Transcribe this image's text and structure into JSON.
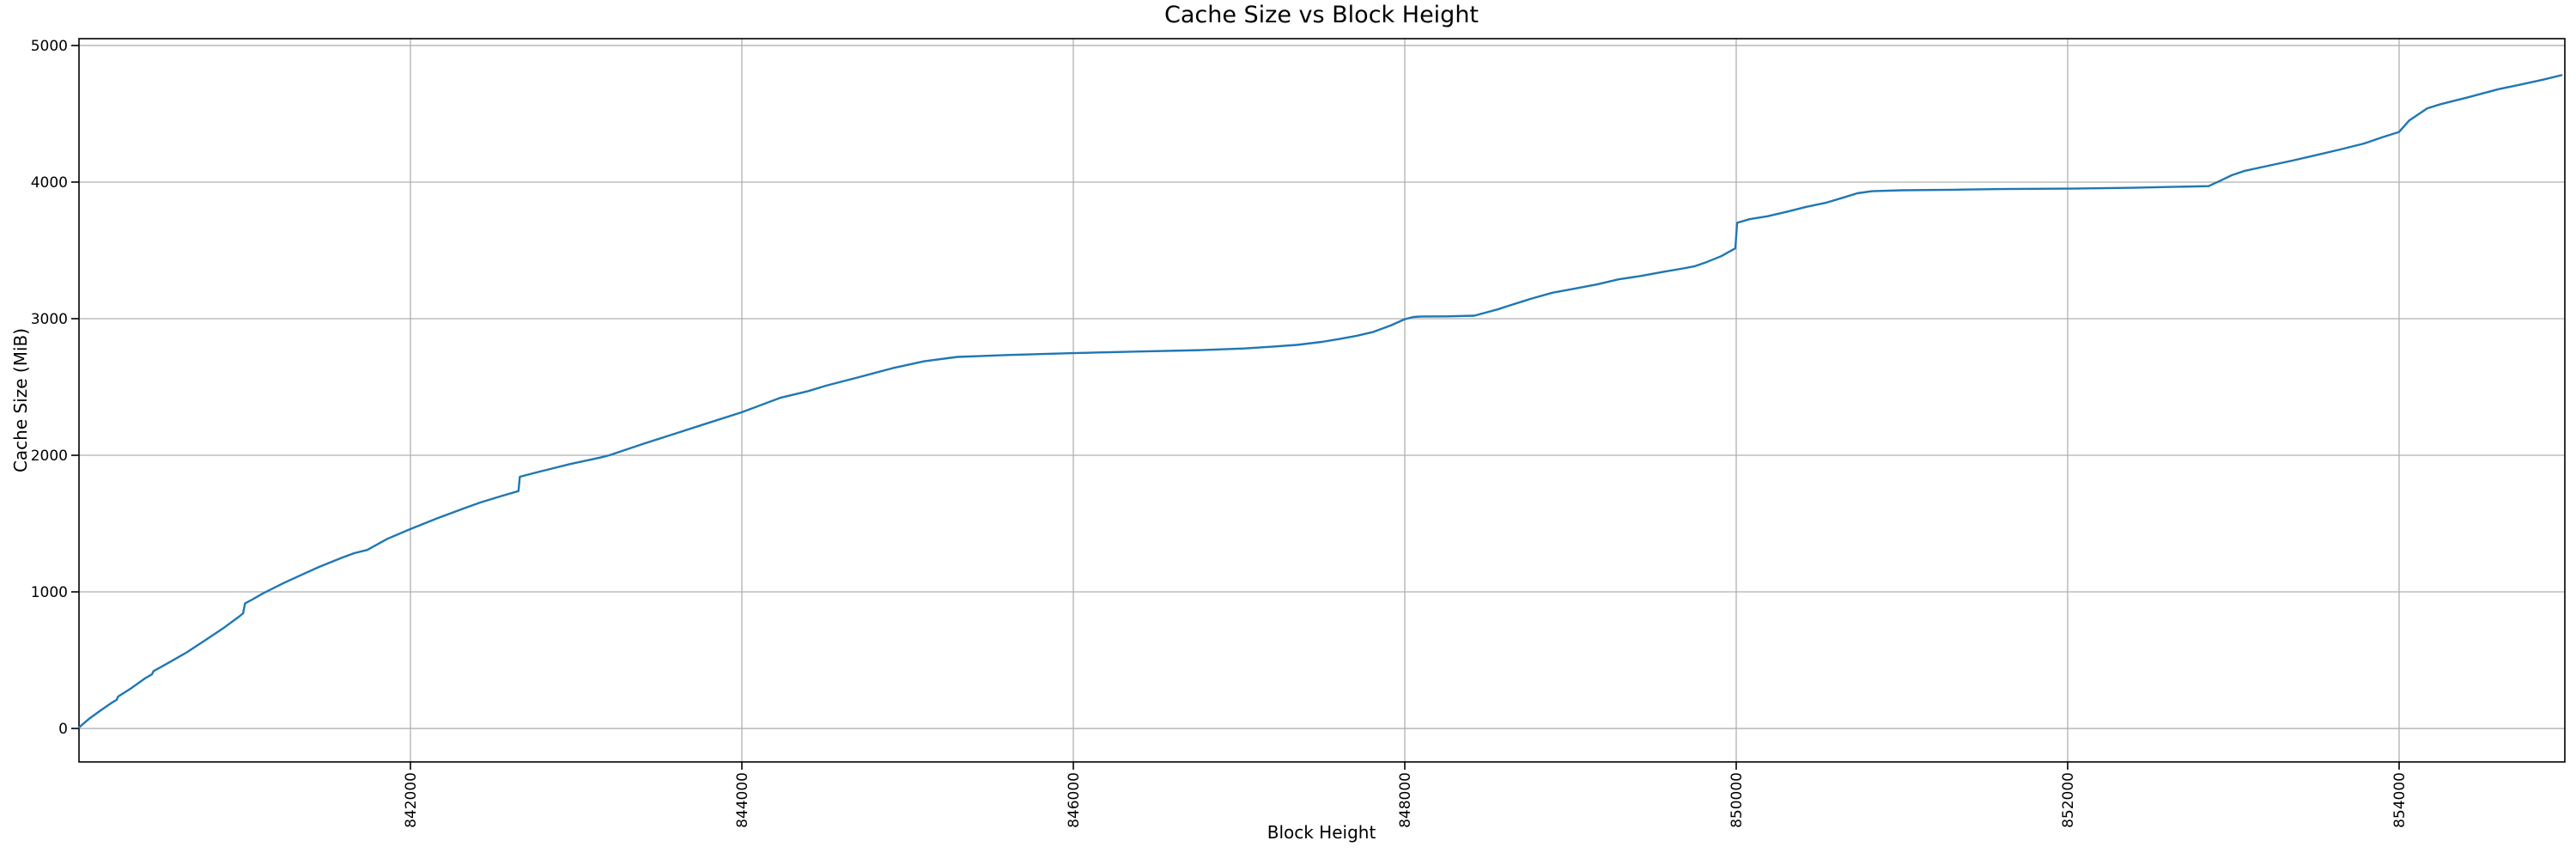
{
  "chart_data": {
    "type": "line",
    "title": "Cache Size vs Block Height",
    "xlabel": "Block Height",
    "ylabel": "Cache Size (MiB)",
    "x_ticks": [
      842000,
      844000,
      846000,
      848000,
      850000,
      852000,
      854000
    ],
    "y_ticks": [
      0,
      1000,
      2000,
      3000,
      4000,
      5000
    ],
    "xlim": [
      840000,
      855000
    ],
    "ylim": [
      -245,
      5050
    ],
    "grid": true,
    "legend_position": "none",
    "line_color": "#1f77b4",
    "grid_color": "#b0b0b0",
    "axis_color": "#000000",
    "background_color": "#ffffff",
    "points": [
      [
        840000,
        8
      ],
      [
        840060,
        70
      ],
      [
        840130,
        132
      ],
      [
        840200,
        190
      ],
      [
        840228,
        210
      ],
      [
        840235,
        233
      ],
      [
        840310,
        290
      ],
      [
        840400,
        368
      ],
      [
        840440,
        396
      ],
      [
        840450,
        420
      ],
      [
        840530,
        474
      ],
      [
        840650,
        557
      ],
      [
        840760,
        645
      ],
      [
        840875,
        738
      ],
      [
        840965,
        818
      ],
      [
        840990,
        843
      ],
      [
        841002,
        916
      ],
      [
        841050,
        947
      ],
      [
        841110,
        989
      ],
      [
        841230,
        1062
      ],
      [
        841330,
        1118
      ],
      [
        841450,
        1183
      ],
      [
        841590,
        1252
      ],
      [
        841660,
        1283
      ],
      [
        841740,
        1307
      ],
      [
        841860,
        1388
      ],
      [
        842000,
        1460
      ],
      [
        842160,
        1538
      ],
      [
        842320,
        1610
      ],
      [
        842421,
        1654
      ],
      [
        842550,
        1702
      ],
      [
        842652,
        1738
      ],
      [
        842660,
        1843
      ],
      [
        842783,
        1881
      ],
      [
        842964,
        1936
      ],
      [
        843145,
        1983
      ],
      [
        843200,
        2000
      ],
      [
        843400,
        2082
      ],
      [
        843600,
        2160
      ],
      [
        843800,
        2238
      ],
      [
        844000,
        2315
      ],
      [
        844230,
        2420
      ],
      [
        844400,
        2470
      ],
      [
        844510,
        2510
      ],
      [
        844700,
        2570
      ],
      [
        844910,
        2638
      ],
      [
        845100,
        2688
      ],
      [
        845300,
        2720
      ],
      [
        845600,
        2734
      ],
      [
        846000,
        2748
      ],
      [
        846400,
        2760
      ],
      [
        846770,
        2770
      ],
      [
        847030,
        2782
      ],
      [
        847200,
        2795
      ],
      [
        847350,
        2808
      ],
      [
        847500,
        2830
      ],
      [
        847600,
        2850
      ],
      [
        847710,
        2875
      ],
      [
        847810,
        2903
      ],
      [
        847915,
        2950
      ],
      [
        848000,
        2996
      ],
      [
        848050,
        3012
      ],
      [
        848100,
        3016
      ],
      [
        848250,
        3017
      ],
      [
        848420,
        3022
      ],
      [
        848460,
        3035
      ],
      [
        848560,
        3068
      ],
      [
        848620,
        3092
      ],
      [
        848760,
        3145
      ],
      [
        848890,
        3190
      ],
      [
        849020,
        3219
      ],
      [
        849160,
        3251
      ],
      [
        849290,
        3288
      ],
      [
        849430,
        3314
      ],
      [
        849560,
        3343
      ],
      [
        849680,
        3368
      ],
      [
        849750,
        3384
      ],
      [
        849820,
        3414
      ],
      [
        849910,
        3458
      ],
      [
        849995,
        3515
      ],
      [
        850005,
        3702
      ],
      [
        850080,
        3728
      ],
      [
        850190,
        3750
      ],
      [
        850310,
        3784
      ],
      [
        850420,
        3818
      ],
      [
        850540,
        3848
      ],
      [
        850650,
        3888
      ],
      [
        850730,
        3918
      ],
      [
        850820,
        3933
      ],
      [
        851000,
        3940
      ],
      [
        851300,
        3944
      ],
      [
        851600,
        3949
      ],
      [
        852000,
        3952
      ],
      [
        852400,
        3958
      ],
      [
        852600,
        3964
      ],
      [
        852850,
        3970
      ],
      [
        852920,
        4010
      ],
      [
        852990,
        4050
      ],
      [
        853065,
        4081
      ],
      [
        853210,
        4119
      ],
      [
        853355,
        4157
      ],
      [
        853500,
        4197
      ],
      [
        853645,
        4239
      ],
      [
        853790,
        4283
      ],
      [
        853903,
        4330
      ],
      [
        854000,
        4367
      ],
      [
        854060,
        4450
      ],
      [
        854170,
        4540
      ],
      [
        854250,
        4570
      ],
      [
        854420,
        4622
      ],
      [
        854600,
        4680
      ],
      [
        854730,
        4713
      ],
      [
        854870,
        4750
      ],
      [
        854980,
        4783
      ]
    ]
  }
}
